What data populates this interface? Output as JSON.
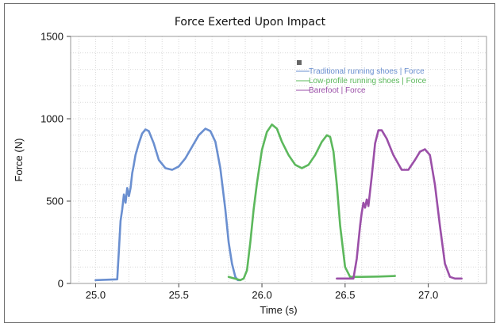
{
  "chart_data": {
    "type": "line",
    "title": "Force Exerted Upon Impact",
    "xlabel": "Time (s)",
    "ylabel": "Force (N)",
    "xlim": [
      24.85,
      27.35
    ],
    "ylim": [
      0,
      1500
    ],
    "xticks": [
      "25.0",
      "25.5",
      "26.0",
      "26.5",
      "27.0"
    ],
    "yticks": [
      "0",
      "500",
      "1000",
      "1500"
    ],
    "grid": true,
    "legend_position": "top-right",
    "series": [
      {
        "name": "Traditional running shoes | Force",
        "color": "#6a8fd0",
        "x": [
          25.0,
          25.13,
          25.14,
          25.15,
          25.16,
          25.17,
          25.18,
          25.19,
          25.2,
          25.21,
          25.22,
          25.23,
          25.24,
          25.26,
          25.28,
          25.3,
          25.32,
          25.35,
          25.38,
          25.42,
          25.46,
          25.5,
          25.54,
          25.58,
          25.62,
          25.66,
          25.69,
          25.72,
          25.75,
          25.78,
          25.8,
          25.82,
          25.84,
          25.855,
          25.87
        ],
        "y": [
          20,
          25,
          200,
          380,
          450,
          540,
          490,
          580,
          530,
          580,
          670,
          720,
          780,
          850,
          910,
          935,
          925,
          850,
          750,
          700,
          690,
          710,
          760,
          830,
          900,
          940,
          925,
          860,
          700,
          450,
          250,
          120,
          40,
          20,
          20
        ]
      },
      {
        "name": "Low-profile running shoes | Force",
        "color": "#5cb85c",
        "x": [
          25.8,
          25.87,
          25.89,
          25.91,
          25.93,
          25.95,
          25.97,
          26.0,
          26.03,
          26.06,
          26.09,
          26.12,
          26.16,
          26.2,
          26.24,
          26.28,
          26.32,
          26.36,
          26.39,
          26.41,
          26.43,
          26.45,
          26.47,
          26.5,
          26.53,
          26.55,
          26.6,
          26.7,
          26.8
        ],
        "y": [
          40,
          20,
          30,
          80,
          250,
          450,
          610,
          810,
          920,
          965,
          940,
          860,
          780,
          720,
          700,
          720,
          780,
          860,
          900,
          890,
          800,
          600,
          350,
          100,
          40,
          40,
          40,
          42,
          45
        ],
        "x_alt_note": ""
      },
      {
        "name": "Barefoot | Force",
        "color": "#9b4fa8",
        "x": [
          26.45,
          26.55,
          26.57,
          26.59,
          26.6,
          26.61,
          26.62,
          26.63,
          26.64,
          26.66,
          26.68,
          26.7,
          26.72,
          26.75,
          26.79,
          26.84,
          26.88,
          26.92,
          26.95,
          26.98,
          27.01,
          27.04,
          27.07,
          27.1,
          27.13,
          27.16,
          27.18,
          27.2
        ],
        "y": [
          30,
          30,
          150,
          350,
          430,
          490,
          460,
          510,
          470,
          650,
          850,
          930,
          930,
          880,
          780,
          690,
          690,
          750,
          800,
          815,
          780,
          600,
          350,
          120,
          40,
          30,
          30,
          30
        ]
      }
    ]
  }
}
